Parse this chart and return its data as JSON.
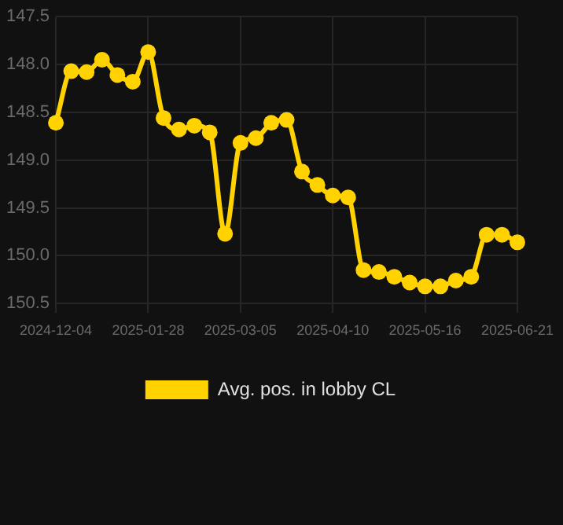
{
  "chart_data": {
    "type": "line",
    "categories": [
      "2024-12-04",
      null,
      null,
      null,
      null,
      null,
      "2025-01-28",
      null,
      null,
      null,
      null,
      null,
      "2025-03-05",
      null,
      null,
      null,
      null,
      null,
      "2025-04-10",
      null,
      null,
      null,
      null,
      null,
      "2025-05-16",
      null,
      null,
      null,
      null,
      null,
      "2025-06-21"
    ],
    "series": [
      {
        "name": "Avg. pos. in lobby CL",
        "color": "#ffd200",
        "values": [
          148.61,
          148.07,
          148.08,
          147.95,
          148.11,
          148.18,
          147.87,
          148.56,
          148.68,
          148.64,
          148.71,
          149.77,
          148.82,
          148.77,
          148.61,
          148.58,
          149.12,
          149.26,
          149.37,
          149.39,
          150.15,
          150.17,
          150.22,
          150.28,
          150.32,
          150.32,
          150.26,
          150.22,
          149.78,
          149.78,
          149.86
        ]
      }
    ],
    "ylim": [
      150.6,
      147.5
    ],
    "yticks": [
      {
        "value": 147.5,
        "label": "147.5"
      },
      {
        "value": 148,
        "label": "148.0"
      },
      {
        "value": 148.5,
        "label": "148.5"
      },
      {
        "value": 149,
        "label": "149.0"
      },
      {
        "value": 149.5,
        "label": "149.5"
      },
      {
        "value": 150,
        "label": "150.0"
      },
      {
        "value": 150.5,
        "label": "150.5"
      }
    ],
    "grid": true,
    "legend": "bottom",
    "marker": "circle",
    "line_style": "solid"
  }
}
